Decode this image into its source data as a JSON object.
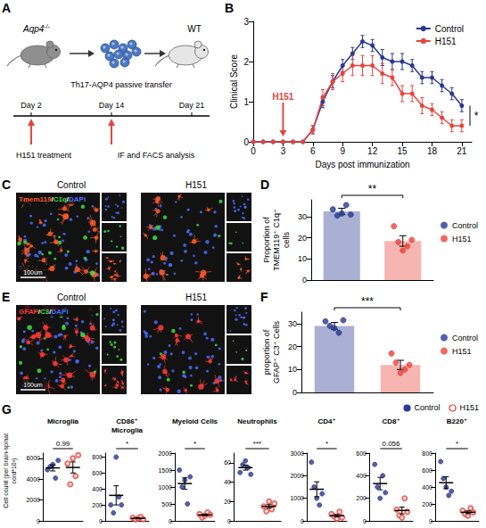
{
  "chart_data": [
    {
      "panel": "B",
      "type": "line",
      "ylabel": "Clinical Score",
      "xlabel": "Days post immunization",
      "x": [
        0,
        1,
        2,
        3,
        4,
        5,
        6,
        7,
        8,
        9,
        10,
        11,
        12,
        13,
        14,
        15,
        16,
        17,
        18,
        19,
        20,
        21
      ],
      "xlim": [
        0,
        22
      ],
      "xticks": [
        0,
        3,
        6,
        9,
        12,
        15,
        18,
        21
      ],
      "ylim": [
        0,
        3
      ],
      "yticks": [
        0,
        1,
        2,
        3
      ],
      "series": [
        {
          "name": "Control",
          "color": "#2b3990",
          "marker": "circle",
          "values": [
            0,
            0,
            0,
            0,
            0,
            0,
            0.3,
            1.0,
            1.5,
            1.9,
            2.2,
            2.5,
            2.4,
            2.1,
            2.0,
            2.0,
            1.9,
            1.6,
            1.6,
            1.4,
            1.2,
            0.9
          ],
          "errors": [
            0,
            0,
            0,
            0,
            0,
            0,
            0.1,
            0.15,
            0.15,
            0.15,
            0.15,
            0.15,
            0.15,
            0.2,
            0.2,
            0.2,
            0.15,
            0.15,
            0.15,
            0.15,
            0.15,
            0.15
          ]
        },
        {
          "name": "H151",
          "color": "#e8453c",
          "marker": "circle",
          "values": [
            0,
            0,
            0,
            0,
            0,
            0,
            0.3,
            1.1,
            1.5,
            1.7,
            1.9,
            1.9,
            1.9,
            1.7,
            1.6,
            1.2,
            1.2,
            0.9,
            0.8,
            0.6,
            0.4,
            0.4
          ],
          "errors": [
            0,
            0,
            0,
            0,
            0,
            0,
            0.1,
            0.2,
            0.2,
            0.2,
            0.25,
            0.25,
            0.25,
            0.25,
            0.2,
            0.2,
            0.2,
            0.2,
            0.15,
            0.15,
            0.15,
            0.15
          ]
        }
      ],
      "annotations": [
        {
          "text": "H151",
          "x": 3,
          "color": "#e8453c"
        }
      ],
      "significance": "*",
      "legend": "top-right",
      "grid": false
    },
    {
      "panel": "D",
      "type": "bar",
      "ylabel": "Proportion of TMEM119⁺ C1q⁺ cells",
      "ylim": [
        0,
        38
      ],
      "yticks": [
        0,
        10,
        20,
        30
      ],
      "tick_labels": "y",
      "grid": false,
      "legend": "right",
      "significance": "**",
      "series": [
        {
          "name": "Control",
          "color": "#2b3990",
          "marker": "circle",
          "values": [
            32.5
          ],
          "errors": [
            1.5
          ],
          "points": [
            33.5,
            30.5,
            31.5,
            35.5,
            31
          ]
        },
        {
          "name": "H151",
          "color": "#e8453c",
          "marker": "circle",
          "values": [
            18.5
          ],
          "errors": [
            2.5
          ],
          "points": [
            25.5,
            18,
            14,
            16,
            19
          ]
        }
      ]
    },
    {
      "panel": "F",
      "type": "bar",
      "ylabel": "proportion of GFAP⁺ C3⁺ Cells",
      "ylim": [
        0,
        35
      ],
      "yticks": [
        0,
        10,
        20,
        30
      ],
      "tick_labels": "y",
      "grid": false,
      "legend": "right",
      "significance": "***",
      "series": [
        {
          "name": "Control",
          "color": "#2b3990",
          "marker": "circle",
          "values": [
            29
          ],
          "errors": [
            1.5
          ],
          "points": [
            31,
            29,
            28,
            26,
            31.5
          ]
        },
        {
          "name": "H151",
          "color": "#e8453c",
          "marker": "circle",
          "values": [
            12
          ],
          "errors": [
            2
          ],
          "points": [
            17,
            13,
            8.5,
            10,
            12
          ]
        }
      ]
    },
    {
      "panel": "G",
      "type": "dot",
      "title": "Microglia",
      "ylabel": "Cell count (per brain-spinal cord*10³)",
      "legend": "top-right",
      "ylim": [
        0,
        6500
      ],
      "yticks": [
        0,
        2000,
        4000,
        6000
      ],
      "tick_labels": "y",
      "grid": false,
      "significance": "0.99",
      "series": [
        {
          "name": "Control",
          "color": "#2b3990",
          "marker": "circle",
          "points": [
            4900,
            5200,
            5400,
            4100,
            5800
          ],
          "mean": 5080,
          "sem": 290
        },
        {
          "name": "H151",
          "color": "#e8453c",
          "marker": "open_circle",
          "points": [
            5500,
            3500,
            6000,
            4300,
            6300
          ],
          "mean": 5120,
          "sem": 530
        }
      ]
    },
    {
      "type": "dot",
      "title": "CD86⁺ Microglia",
      "ylim": [
        0,
        850
      ],
      "yticks": [
        0,
        200,
        400,
        600,
        800
      ],
      "tick_labels": "y",
      "grid": false,
      "significance": "*",
      "series": [
        {
          "name": "Control",
          "color": "#2b3990",
          "marker": "circle",
          "points": [
            200,
            100,
            800,
            300,
            200
          ],
          "mean": 320,
          "sem": 120
        },
        {
          "name": "H151",
          "color": "#e8453c",
          "marker": "open_circle",
          "points": [
            40,
            20,
            30,
            50,
            20
          ],
          "mean": 32,
          "sem": 6
        }
      ]
    },
    {
      "type": "dot",
      "title": "Myeloid Cells",
      "ylim": [
        0,
        2000
      ],
      "yticks": [
        0,
        500,
        1000,
        1500,
        2000
      ],
      "tick_labels": "y",
      "grid": false,
      "significance": "*",
      "series": [
        {
          "name": "Control",
          "color": "#2b3990",
          "marker": "circle",
          "points": [
            1500,
            1000,
            1200,
            500,
            1300
          ],
          "mean": 1100,
          "sem": 170
        },
        {
          "name": "H151",
          "color": "#e8453c",
          "marker": "open_circle",
          "points": [
            200,
            100,
            150,
            250,
            180
          ],
          "mean": 176,
          "sem": 25
        }
      ]
    },
    {
      "type": "dot",
      "title": "Neutrophils",
      "ylim": [
        0,
        70
      ],
      "yticks": [
        0,
        20,
        40,
        60
      ],
      "tick_labels": "y",
      "grid": false,
      "significance": "***",
      "series": [
        {
          "name": "Control",
          "color": "#2b3990",
          "marker": "circle",
          "points": [
            50,
            58,
            62,
            55,
            48
          ],
          "mean": 55,
          "sem": 2.6
        },
        {
          "name": "H151",
          "color": "#e8453c",
          "marker": "open_circle",
          "points": [
            15,
            10,
            20,
            12,
            18
          ],
          "mean": 15,
          "sem": 1.8
        }
      ]
    },
    {
      "type": "dot",
      "title": "CD4⁺",
      "ylim": [
        0,
        3000
      ],
      "yticks": [
        0,
        1000,
        2000,
        3000
      ],
      "tick_labels": "y",
      "grid": false,
      "significance": "*",
      "series": [
        {
          "name": "Control",
          "color": "#2b3990",
          "marker": "circle",
          "points": [
            2600,
            1500,
            1000,
            700,
            1200
          ],
          "mean": 1400,
          "sem": 330
        },
        {
          "name": "H151",
          "color": "#e8453c",
          "marker": "open_circle",
          "points": [
            300,
            200,
            100,
            400,
            150
          ],
          "mean": 230,
          "sem": 55
        }
      ]
    },
    {
      "type": "dot",
      "title": "CD8⁺",
      "ylim": [
        0,
        600
      ],
      "yticks": [
        0,
        200,
        400,
        600
      ],
      "tick_labels": "y",
      "grid": false,
      "significance": "0.056",
      "series": [
        {
          "name": "Control",
          "color": "#2b3990",
          "marker": "circle",
          "points": [
            500,
            300,
            200,
            400,
            250
          ],
          "mean": 330,
          "sem": 55
        },
        {
          "name": "H151",
          "color": "#e8453c",
          "marker": "open_circle",
          "points": [
            100,
            50,
            30,
            200,
            80
          ],
          "mean": 92,
          "sem": 30
        }
      ]
    },
    {
      "type": "dot",
      "title": "B220⁺",
      "ylim": [
        0,
        800
      ],
      "yticks": [
        0,
        200,
        400,
        600,
        800
      ],
      "tick_labels": "y",
      "grid": false,
      "significance": "*",
      "series": [
        {
          "name": "Control",
          "color": "#2b3990",
          "marker": "circle",
          "points": [
            700,
            500,
            400,
            300,
            350
          ],
          "mean": 450,
          "sem": 70
        },
        {
          "name": "H151",
          "color": "#e8453c",
          "marker": "open_circle",
          "points": [
            120,
            80,
            60,
            150,
            100
          ],
          "mean": 102,
          "sem": 16
        }
      ]
    }
  ],
  "schematic": {
    "panel": "A",
    "donor": {
      "gene": "Aqp4",
      "genotype": "-/-"
    },
    "transfer": "Th17-AQP4 passive transfer",
    "recipient": "WT",
    "timeline": [
      {
        "label": "Day 2",
        "treatment": true
      },
      {
        "label": "Day 14",
        "treatment": true
      },
      {
        "label": "Day 21",
        "treatment": false
      }
    ],
    "treatment_label": "H151 treatment",
    "analysis_label": "IF and FACS analysis",
    "arrow_color": "#e8453c"
  },
  "images": [
    {
      "panel": "C",
      "groups": [
        "Control",
        "H151"
      ],
      "separator": "/",
      "scale_bar": "100um",
      "stains": [
        {
          "text": "Tmem119",
          "color": "#ff5a2a"
        },
        {
          "text": "C1q",
          "color": "#3fe03f"
        },
        {
          "text": "DAPI",
          "color": "#4a6cff"
        }
      ]
    },
    {
      "panel": "E",
      "groups": [
        "Control",
        "H151"
      ],
      "separator": "/",
      "scale_bar": "100um",
      "stains": [
        {
          "text": "GFAP",
          "color": "#ff3b3b"
        },
        {
          "text": "C3",
          "color": "#3fe03f"
        },
        {
          "text": "DAPI",
          "color": "#4a6cff"
        }
      ]
    }
  ]
}
